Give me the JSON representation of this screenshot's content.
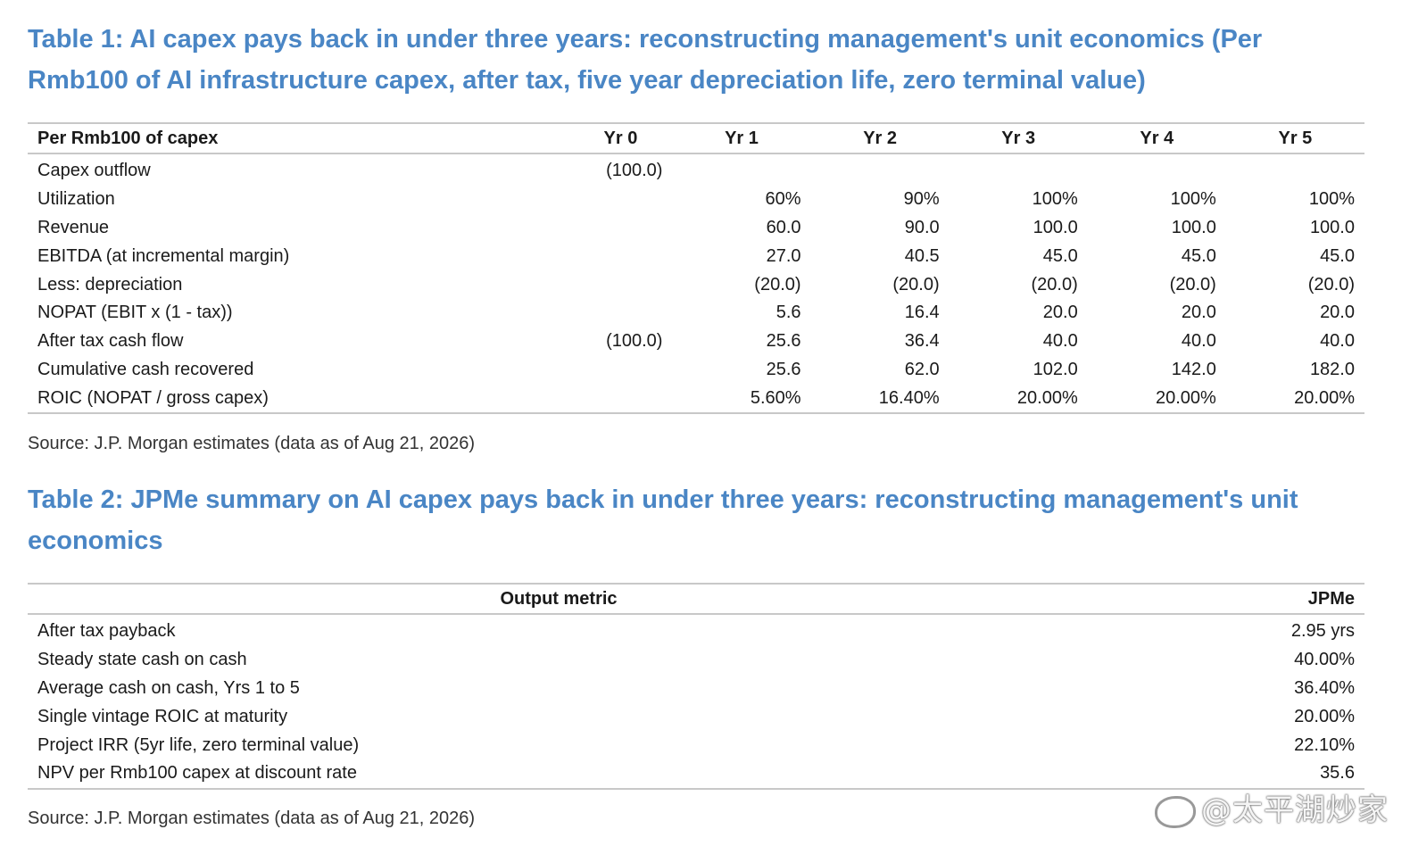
{
  "table1": {
    "title": "Table 1: AI capex pays back in under three years: reconstructing management's unit economics (Per Rmb100 of AI infrastructure capex, after tax, five year depreciation life, zero terminal value)",
    "headers": [
      "Per Rmb100 of capex",
      "Yr 0",
      "Yr 1",
      "Yr 2",
      "Yr 3",
      "Yr 4",
      "Yr 5"
    ],
    "rows": [
      {
        "label": "Capex outflow",
        "values": [
          "(100.0)",
          "",
          "",
          "",
          "",
          ""
        ]
      },
      {
        "label": "Utilization",
        "values": [
          "",
          "60%",
          "90%",
          "100%",
          "100%",
          "100%"
        ]
      },
      {
        "label": "Revenue",
        "values": [
          "",
          "60.0",
          "90.0",
          "100.0",
          "100.0",
          "100.0"
        ]
      },
      {
        "label": "EBITDA (at incremental margin)",
        "values": [
          "",
          "27.0",
          "40.5",
          "45.0",
          "45.0",
          "45.0"
        ]
      },
      {
        "label": "Less: depreciation",
        "values": [
          "",
          "(20.0)",
          "(20.0)",
          "(20.0)",
          "(20.0)",
          "(20.0)"
        ]
      },
      {
        "label": "NOPAT (EBIT x (1 - tax))",
        "values": [
          "",
          "5.6",
          "16.4",
          "20.0",
          "20.0",
          "20.0"
        ]
      },
      {
        "label": "After tax cash flow",
        "values": [
          "(100.0)",
          "25.6",
          "36.4",
          "40.0",
          "40.0",
          "40.0"
        ]
      },
      {
        "label": "Cumulative cash recovered",
        "values": [
          "",
          "25.6",
          "62.0",
          "102.0",
          "142.0",
          "182.0"
        ]
      },
      {
        "label": "ROIC (NOPAT / gross capex)",
        "values": [
          "",
          "5.60%",
          "16.40%",
          "20.00%",
          "20.00%",
          "20.00%"
        ]
      }
    ],
    "source": "Source: J.P. Morgan estimates (data as of Aug 21, 2026)"
  },
  "table2": {
    "title": "Table 2: JPMe summary on AI capex pays back in under three years: reconstructing management's unit economics",
    "headers": [
      "Output metric",
      "JPMe"
    ],
    "rows": [
      {
        "label": "After tax payback",
        "value": "2.95 yrs"
      },
      {
        "label": "Steady state cash on cash",
        "value": "40.00%"
      },
      {
        "label": "Average cash on cash, Yrs 1 to 5",
        "value": "36.40%"
      },
      {
        "label": "Single vintage ROIC at maturity",
        "value": "20.00%"
      },
      {
        "label": "Project IRR (5yr life, zero terminal value)",
        "value": "22.10%"
      },
      {
        "label": "NPV per Rmb100 capex at discount rate",
        "value": "35.6"
      }
    ],
    "source": "Source: J.P. Morgan estimates (data as of Aug 21, 2026)"
  },
  "watermark": {
    "text": "@太平湖炒家",
    "icon": "weibo-icon"
  }
}
